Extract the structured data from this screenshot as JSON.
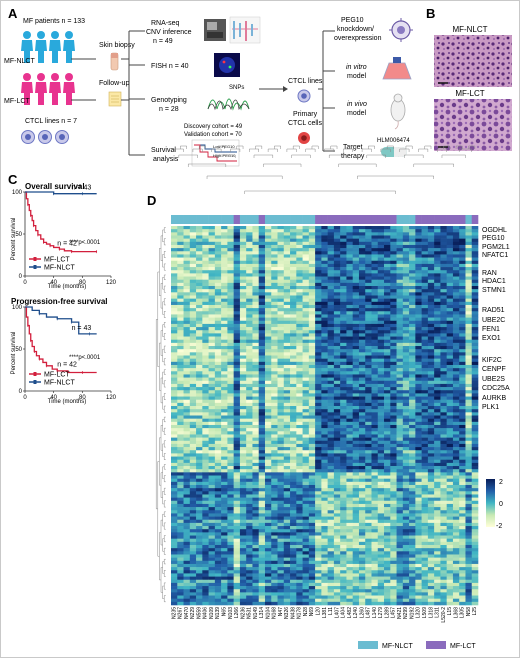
{
  "panels": {
    "a": "A",
    "b": "B",
    "c": "C",
    "d": "D"
  },
  "panel_a": {
    "mf_patients": "MF patients n = 133",
    "mf_nlct": "MF-NLCT",
    "mf_lct": "MF-LCT",
    "ctcl_lines": "CTCL lines n = 7",
    "skin_biopsy": "Skin biopsy",
    "follow_up": "Follow-up",
    "rnaseq_1": "RNA-seq",
    "rnaseq_2": "CNV inference",
    "rnaseq_3": "n = 49",
    "fish": "FISH n = 40",
    "snps": "SNPs",
    "genotyping_1": "Genotyping",
    "genotyping_2": "n = 28",
    "discovery": "Discovery cohort = 49",
    "validation": "Validation cohort = 70",
    "survival_1": "Survival",
    "survival_2": "analysis",
    "km_low": "Low-PEG10",
    "km_high": "High-PEG10",
    "ctcl_lines_out": "CTCL lines",
    "primary_1": "Primary",
    "primary_2": "CTCL cells",
    "peg10_1": "PEG10",
    "peg10_2": "knockdown/",
    "peg10_3": "overexpression",
    "in_vitro_1": "in vitro",
    "in_vitro_2": "model",
    "in_vivo_1": "in vivo",
    "in_vivo_2": "model",
    "target_1": "Target",
    "target_2": "therapy",
    "drug": "HLM006474"
  },
  "panel_b": {
    "top_label": "MF-NLCT",
    "bottom_label": "MF-LCT"
  },
  "chart_data": [
    {
      "type": "line",
      "title": "Overall survival",
      "xlabel": "Time (months)",
      "ylabel": "Percent survival",
      "xlim": [
        0,
        120
      ],
      "ylim": [
        0,
        100
      ],
      "xticks": [
        "0",
        "40",
        "80",
        "120"
      ],
      "yticks": [
        "0",
        "50",
        "100"
      ],
      "annotation": "****p<.0001",
      "series": [
        {
          "name": "MF-LCT",
          "n_label": "n = 42",
          "color": "#d21f3c",
          "x": [
            0,
            2,
            4,
            6,
            8,
            10,
            12,
            15,
            18,
            22,
            26,
            30,
            35,
            40,
            48,
            55,
            65,
            75,
            100
          ],
          "y": [
            100,
            92,
            85,
            78,
            72,
            66,
            60,
            54,
            49,
            44,
            40,
            38,
            36,
            34,
            32,
            30,
            29,
            29,
            29
          ]
        },
        {
          "name": "MF-NLCT",
          "n_label": "n = 43",
          "color": "#1f4e8c",
          "x": [
            0,
            20,
            40,
            60,
            80,
            100
          ],
          "y": [
            100,
            100,
            98,
            98,
            98,
            98
          ]
        }
      ]
    },
    {
      "type": "line",
      "title": "Progression-free survival",
      "xlabel": "Time (months)",
      "ylabel": "Percent survival",
      "xlim": [
        0,
        120
      ],
      "ylim": [
        0,
        100
      ],
      "xticks": [
        "0",
        "40",
        "80",
        "120"
      ],
      "yticks": [
        "0",
        "50",
        "100"
      ],
      "annotation": "****p<.0001",
      "series": [
        {
          "name": "MF-LCT",
          "n_label": "n = 42",
          "color": "#d21f3c",
          "x": [
            0,
            2,
            4,
            6,
            8,
            10,
            13,
            16,
            20,
            25,
            30,
            38,
            45,
            60,
            80,
            100
          ],
          "y": [
            100,
            88,
            78,
            68,
            60,
            53,
            47,
            42,
            38,
            34,
            30,
            26,
            24,
            22,
            22,
            22
          ]
        },
        {
          "name": "MF-NLCT",
          "n_label": "n = 43",
          "color": "#1f4e8c",
          "x": [
            0,
            10,
            20,
            30,
            45,
            55,
            65,
            75,
            90,
            100
          ],
          "y": [
            100,
            96,
            92,
            88,
            86,
            86,
            82,
            68,
            68,
            68
          ]
        }
      ]
    },
    {
      "type": "heatmap",
      "colorbar_ticks": [
        "2",
        "0",
        "-2"
      ],
      "colorscale": [
        "#ffffd9",
        "#c7e9b4",
        "#41b6c4",
        "#225ea8",
        "#081d58"
      ],
      "legend": [
        {
          "label": "MF-NLCT",
          "color": "#6bbcd1"
        },
        {
          "label": "MF-LCT",
          "color": "#8a6bbd"
        }
      ],
      "genes": [
        "OGDHL",
        "PEG10",
        "PGM2L1",
        "NFATC1",
        "RAN",
        "HDAC1",
        "STMN1",
        "RAD51",
        "UBE2C",
        "FEN1",
        "EXO1",
        "KIF2C",
        "CENPF",
        "UBE2S",
        "CDC25A",
        "AURKB",
        "PLK1"
      ],
      "samples": [
        {
          "id": "N235",
          "group": "MF-NLCT"
        },
        {
          "id": "N267",
          "group": "MF-NLCT"
        },
        {
          "id": "N470",
          "group": "MF-NLCT"
        },
        {
          "id": "N229",
          "group": "MF-NLCT"
        },
        {
          "id": "N559",
          "group": "MF-NLCT"
        },
        {
          "id": "N406",
          "group": "MF-NLCT"
        },
        {
          "id": "N109",
          "group": "MF-NLCT"
        },
        {
          "id": "N139",
          "group": "MF-NLCT"
        },
        {
          "id": "N65",
          "group": "MF-NLCT"
        },
        {
          "id": "N103",
          "group": "MF-NLCT"
        },
        {
          "id": "L266",
          "group": "MF-LCT"
        },
        {
          "id": "N236",
          "group": "MF-NLCT"
        },
        {
          "id": "N531",
          "group": "MF-NLCT"
        },
        {
          "id": "N149",
          "group": "MF-NLCT"
        },
        {
          "id": "L314",
          "group": "MF-LCT"
        },
        {
          "id": "N104",
          "group": "MF-NLCT"
        },
        {
          "id": "N168",
          "group": "MF-NLCT"
        },
        {
          "id": "N47",
          "group": "MF-NLCT"
        },
        {
          "id": "N326",
          "group": "MF-NLCT"
        },
        {
          "id": "N438",
          "group": "MF-NLCT"
        },
        {
          "id": "N178",
          "group": "MF-NLCT"
        },
        {
          "id": "N28",
          "group": "MF-NLCT"
        },
        {
          "id": "N69",
          "group": "MF-NLCT"
        },
        {
          "id": "L20",
          "group": "MF-LCT"
        },
        {
          "id": "L381",
          "group": "MF-LCT"
        },
        {
          "id": "L11",
          "group": "MF-LCT"
        },
        {
          "id": "L407",
          "group": "MF-LCT"
        },
        {
          "id": "L404",
          "group": "MF-LCT"
        },
        {
          "id": "L482",
          "group": "MF-LCT"
        },
        {
          "id": "L240",
          "group": "MF-LCT"
        },
        {
          "id": "L260",
          "group": "MF-LCT"
        },
        {
          "id": "L487",
          "group": "MF-LCT"
        },
        {
          "id": "L140",
          "group": "MF-LCT"
        },
        {
          "id": "L279",
          "group": "MF-LCT"
        },
        {
          "id": "L289",
          "group": "MF-LCT"
        },
        {
          "id": "L457",
          "group": "MF-LCT"
        },
        {
          "id": "N421",
          "group": "MF-NLCT"
        },
        {
          "id": "N299",
          "group": "MF-NLCT"
        },
        {
          "id": "N192",
          "group": "MF-NLCT"
        },
        {
          "id": "L320",
          "group": "MF-LCT"
        },
        {
          "id": "L509",
          "group": "MF-LCT"
        },
        {
          "id": "L318",
          "group": "MF-LCT"
        },
        {
          "id": "L311",
          "group": "MF-LCT"
        },
        {
          "id": "L520-2",
          "group": "MF-LCT"
        },
        {
          "id": "L15",
          "group": "MF-LCT"
        },
        {
          "id": "L368",
          "group": "MF-LCT"
        },
        {
          "id": "L305",
          "group": "MF-LCT"
        },
        {
          "id": "N58",
          "group": "MF-NLCT"
        },
        {
          "id": "L25",
          "group": "MF-LCT"
        }
      ]
    }
  ]
}
